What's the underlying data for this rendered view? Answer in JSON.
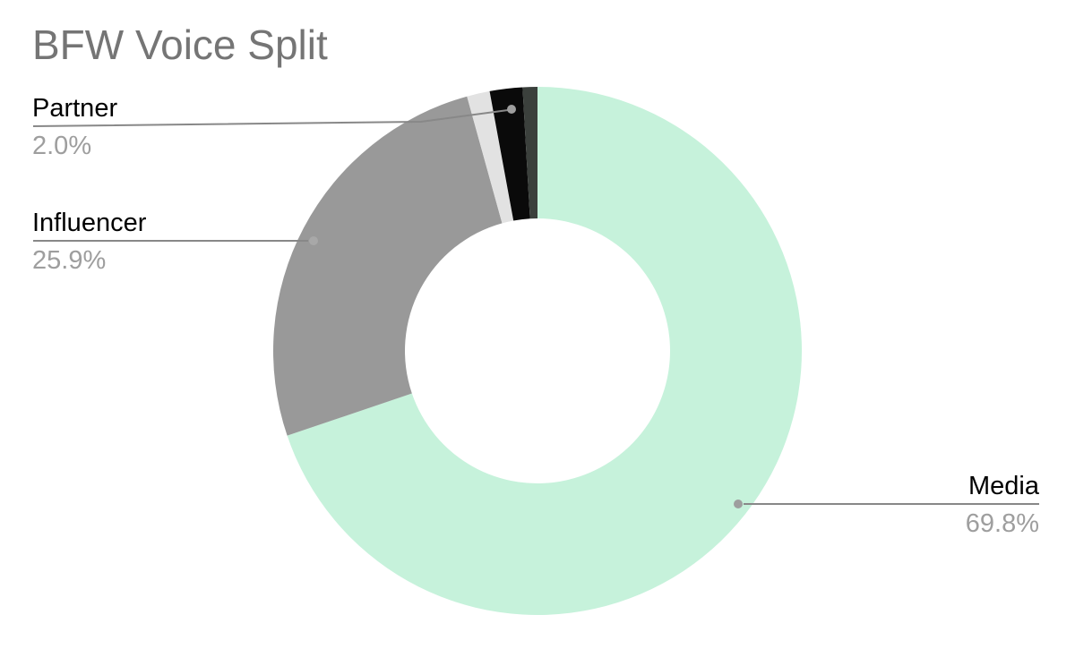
{
  "chart_data": {
    "type": "pie",
    "subtype": "donut",
    "title": "BFW Voice Split",
    "inner_radius_ratio": 0.5,
    "start_angle_deg": 0,
    "direction": "clockwise",
    "unit": "percent",
    "legend": "none",
    "slices": [
      {
        "label": "Media",
        "value": 69.8,
        "display_pct": "69.8%",
        "color": "#c6f2db"
      },
      {
        "label": "Influencer",
        "value": 25.9,
        "display_pct": "25.9%",
        "color": "#999999"
      },
      {
        "label": "",
        "value": 1.4,
        "display_pct": "",
        "color": "#e2e2e2"
      },
      {
        "label": "Partner",
        "value": 2.0,
        "display_pct": "2.0%",
        "color": "#0a0a0a"
      },
      {
        "label": "",
        "value": 0.9,
        "display_pct": "",
        "color": "#3b403c"
      }
    ]
  },
  "colors": {
    "title_text": "#757575",
    "label_text": "#000000",
    "pct_text": "#9e9e9e",
    "leader_line": "#888888",
    "leader_dot": "#9e9e9e",
    "background": "#ffffff"
  }
}
